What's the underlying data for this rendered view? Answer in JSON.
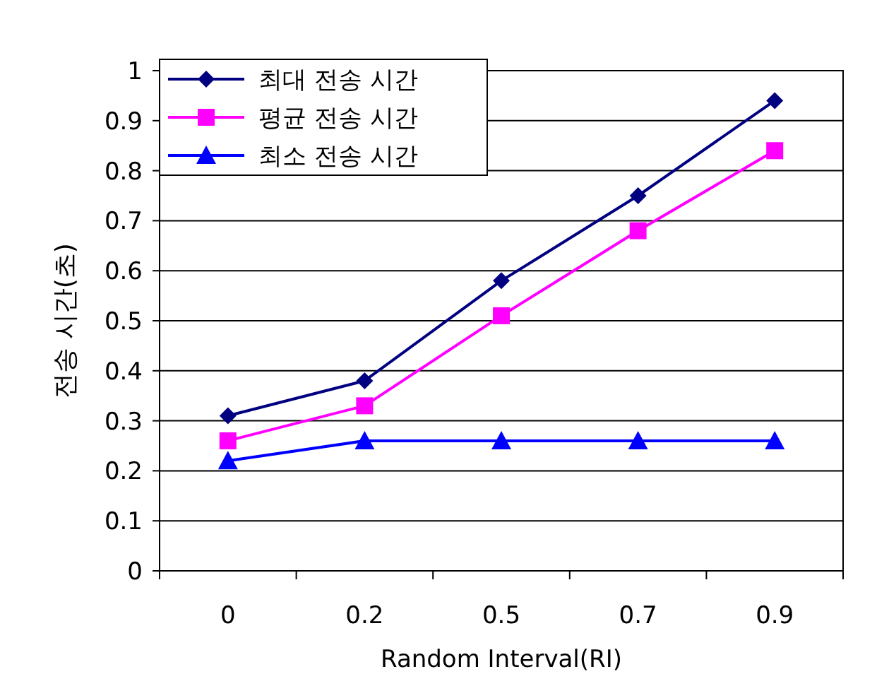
{
  "chart_data": {
    "type": "line",
    "xlabel": "Random Interval(RI)",
    "ylabel": "전송 시간(초)",
    "categories": [
      "0",
      "0.2",
      "0.5",
      "0.7",
      "0.9"
    ],
    "series": [
      {
        "name": "최대 전송 시간",
        "color": "#000080",
        "marker": "diamond",
        "values": [
          0.31,
          0.38,
          0.58,
          0.75,
          0.94
        ]
      },
      {
        "name": "평균 전송 시간",
        "color": "#ff00ff",
        "marker": "square",
        "values": [
          0.26,
          0.33,
          0.51,
          0.68,
          0.84
        ]
      },
      {
        "name": "최소 전송 시간",
        "color": "#0000ff",
        "marker": "triangle",
        "values": [
          0.22,
          0.26,
          0.26,
          0.26,
          0.26
        ]
      }
    ],
    "ylim": [
      0,
      1
    ],
    "yticks": [
      0,
      0.1,
      0.2,
      0.3,
      0.4,
      0.5,
      0.6,
      0.7,
      0.8,
      0.9,
      1
    ],
    "grid": "y",
    "legend": "top left"
  }
}
